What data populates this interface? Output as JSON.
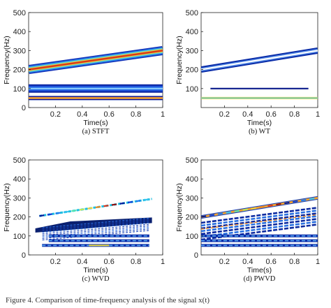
{
  "figure_caption": "Figure 4. Comparison of time-frequency analysis of the signal x(t)",
  "chart_data": [
    {
      "type": "heatmap",
      "caption": "(a) STFT",
      "xlabel": "Time(s)",
      "ylabel": "Frequency(Hz)",
      "xlim": [
        0,
        1
      ],
      "ylim": [
        0,
        500
      ],
      "xticks": [
        0.2,
        0.4,
        0.6,
        0.8,
        1
      ],
      "yticks": [
        0,
        100,
        200,
        300,
        400,
        500
      ],
      "components": [
        {
          "kind": "chirp",
          "t": [
            0,
            1
          ],
          "f": [
            200,
            300
          ]
        },
        {
          "kind": "tone",
          "t": [
            0,
            1
          ],
          "f": 100
        },
        {
          "kind": "tone",
          "t": [
            0,
            1
          ],
          "f": 50
        }
      ]
    },
    {
      "type": "heatmap",
      "caption": "(b) WT",
      "xlabel": "Time(s)",
      "ylabel": "Frequency(Hz)",
      "xlim": [
        0,
        1
      ],
      "ylim": [
        0,
        500
      ],
      "xticks": [
        0.2,
        0.4,
        0.6,
        0.8,
        1
      ],
      "yticks": [
        100,
        200,
        300,
        400,
        500
      ],
      "components": [
        {
          "kind": "chirp",
          "t": [
            0,
            1
          ],
          "f": [
            200,
            300
          ]
        },
        {
          "kind": "tone",
          "t": [
            0.08,
            0.92
          ],
          "f": 100
        },
        {
          "kind": "tone",
          "t": [
            0,
            1
          ],
          "f": 50
        }
      ]
    },
    {
      "type": "heatmap",
      "caption": "(c) WVD",
      "xlabel": "Time(s)",
      "ylabel": "Frequency(Hz)",
      "xlim": [
        0,
        1
      ],
      "ylim": [
        0,
        500
      ],
      "xticks": [
        0.2,
        0.4,
        0.6,
        0.8,
        1
      ],
      "yticks": [
        0,
        100,
        200,
        300,
        400,
        500
      ],
      "components": [
        {
          "kind": "chirp",
          "t": [
            0.08,
            0.92
          ],
          "f": [
            205,
            295
          ]
        },
        {
          "kind": "cross-term",
          "t": [
            0.05,
            0.92
          ],
          "f": [
            125,
            175
          ]
        },
        {
          "kind": "tone",
          "t": [
            0.15,
            0.9
          ],
          "f": 100
        },
        {
          "kind": "tone",
          "t": [
            0.15,
            0.9
          ],
          "f": 75
        },
        {
          "kind": "tone",
          "t": [
            0.1,
            0.9
          ],
          "f": 50
        }
      ]
    },
    {
      "type": "heatmap",
      "caption": "(d) PWVD",
      "xlabel": "Time(s)",
      "ylabel": "Frequency(Hz)",
      "xlim": [
        0,
        1
      ],
      "ylim": [
        0,
        500
      ],
      "xticks": [
        0.2,
        0.4,
        0.6,
        0.8,
        1
      ],
      "yticks": [
        0,
        100,
        200,
        300,
        400,
        500
      ],
      "components": [
        {
          "kind": "chirp",
          "t": [
            0,
            1
          ],
          "f": [
            200,
            300
          ]
        },
        {
          "kind": "cross-term",
          "t": [
            0,
            1
          ],
          "f": [
            125,
            175
          ]
        },
        {
          "kind": "tone",
          "t": [
            0,
            1
          ],
          "f": 100
        },
        {
          "kind": "tone",
          "t": [
            0,
            1
          ],
          "f": 75
        },
        {
          "kind": "tone",
          "t": [
            0,
            1
          ],
          "f": 50
        }
      ]
    }
  ]
}
